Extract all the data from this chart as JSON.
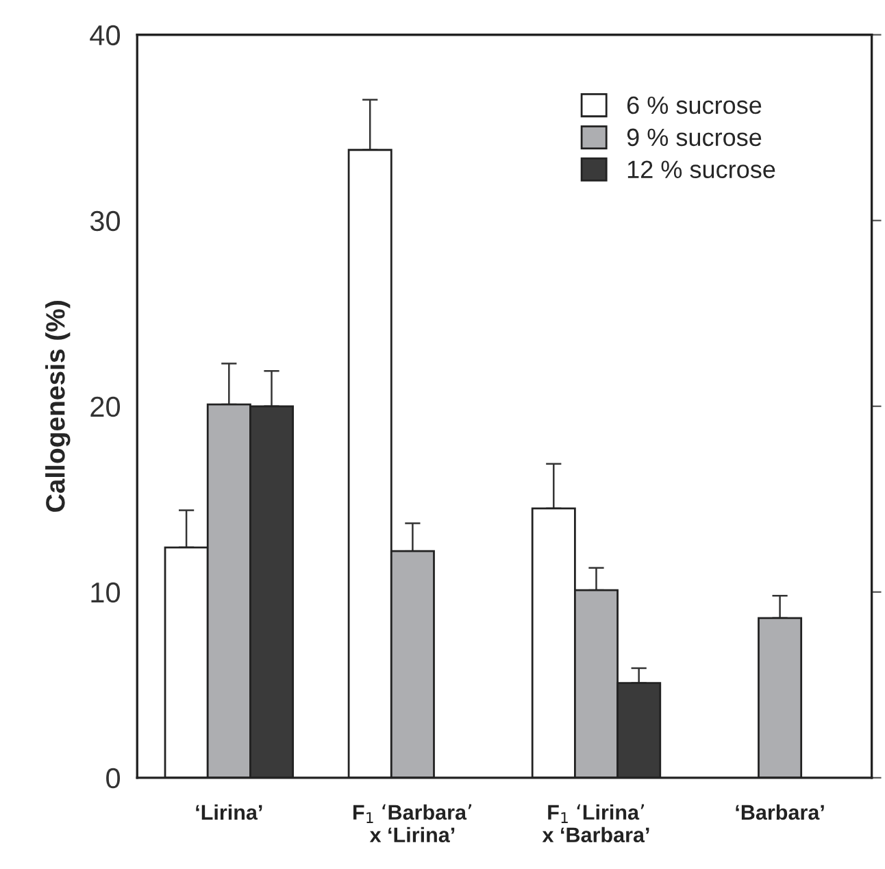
{
  "chart_data": {
    "type": "bar",
    "ylabel": "Callogenesis (%)",
    "categories": [
      "‘Lirina’",
      "F$_{1}$ ‘Barbara’\nx ‘Lirina’",
      "F$_{1}$ ‘Lirina’\nx ‘Barbara’",
      "‘Barbara’"
    ],
    "series": [
      {
        "name": "6 % sucrose",
        "color": "#ffffff",
        "values": [
          12.4,
          33.8,
          14.5,
          null
        ],
        "errors": [
          [
            12.4,
            14.4
          ],
          [
            33.8,
            36.5
          ],
          [
            14.5,
            16.9
          ],
          null
        ]
      },
      {
        "name": "9 % sucrose",
        "color": "#adaeb1",
        "values": [
          20.1,
          12.2,
          10.1,
          8.6
        ],
        "errors": [
          [
            20.1,
            22.3
          ],
          [
            12.2,
            13.7
          ],
          [
            10.1,
            11.3
          ],
          [
            8.6,
            9.8
          ]
        ]
      },
      {
        "name": "12 % sucrose",
        "color": "#3a3a3a",
        "values": [
          20.0,
          null,
          5.1,
          null
        ],
        "errors": [
          [
            20.0,
            21.9
          ],
          null,
          [
            5.1,
            5.9
          ],
          null
        ]
      }
    ],
    "ylim": [
      0,
      40
    ],
    "yticks": [
      0,
      10,
      20,
      30,
      40
    ],
    "grid": false,
    "legend": "top right"
  }
}
